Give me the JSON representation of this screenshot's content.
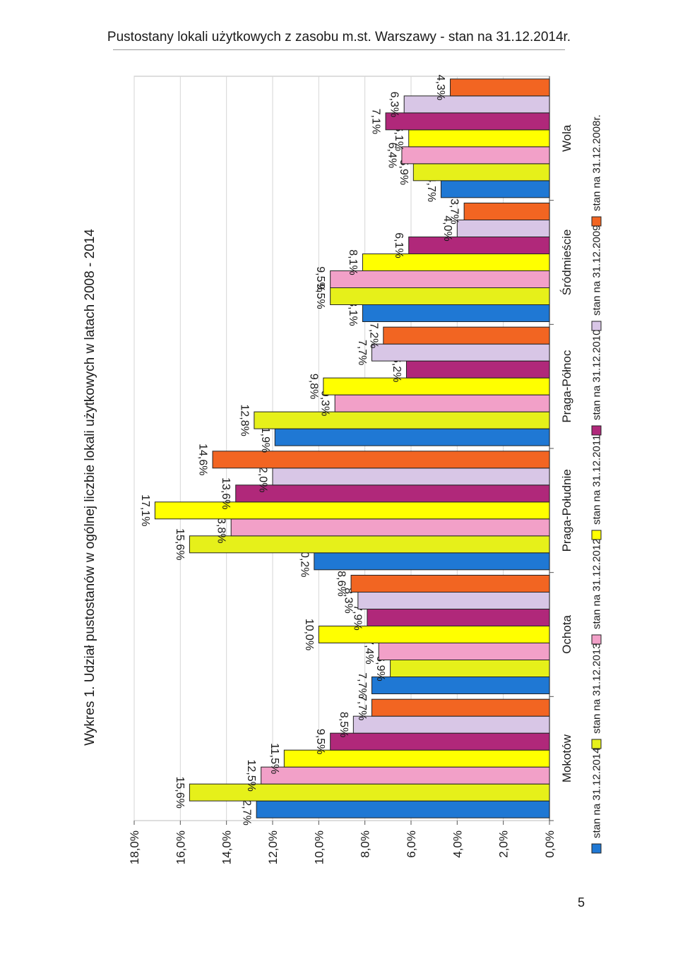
{
  "page": {
    "header": "Pustostany lokali użytkowych z zasobu m.st. Warszawy - stan na 31.12.2014r.",
    "page_number": "5"
  },
  "chart_data": {
    "type": "bar",
    "orientation": "rotated-90-counterclockwise",
    "title": "Wykres 1. Udział pustostanów w ogólnej liczbie lokali użytkowych w latach 2008 - 2014",
    "xlabel": "",
    "ylabel": "",
    "ylim": [
      0,
      18
    ],
    "yticks": [
      "0,0%",
      "2,0%",
      "4,0%",
      "6,0%",
      "8,0%",
      "10,0%",
      "12,0%",
      "14,0%",
      "16,0%",
      "18,0%"
    ],
    "grid": true,
    "legend_position": "bottom",
    "categories": [
      "Mokotów",
      "Ochota",
      "Praga-Południe",
      "Praga-Północ",
      "Śródmieście",
      "Wola"
    ],
    "series": [
      {
        "name": "stan na 31.12.2014r.",
        "color": "#1f78d4",
        "values": [
          12.7,
          7.7,
          10.2,
          11.9,
          8.1,
          4.7
        ],
        "labels": [
          "12,7%",
          "7,7%",
          "10,2%",
          "11,9%",
          "8,1%",
          "4,7%"
        ]
      },
      {
        "name": "stan na 31.12.2013r.",
        "color": "#e6f01a",
        "values": [
          15.6,
          6.9,
          15.6,
          12.8,
          9.5,
          5.9
        ],
        "labels": [
          "15,6%",
          "6,9%",
          "15,6%",
          "12,8%",
          "9,5%",
          "5,9%"
        ]
      },
      {
        "name": "stan na 31.12.2012r.",
        "color": "#f2a0c8",
        "values": [
          12.5,
          7.4,
          13.8,
          9.3,
          9.5,
          6.4
        ],
        "labels": [
          "12,5%",
          "7,4%",
          "13,8%",
          "9,3%",
          "9,5%",
          "6,4%"
        ]
      },
      {
        "name": "stan na 31.12.2011r.",
        "color": "#ffff00",
        "values": [
          11.5,
          10.0,
          17.1,
          9.8,
          8.1,
          6.1
        ],
        "labels": [
          "11,5%",
          "10,0%",
          "17,1%",
          "9,8%",
          "8,1%",
          "6,1%"
        ]
      },
      {
        "name": "stan na 31.12.2010r.",
        "color": "#b0287a",
        "values": [
          9.5,
          7.9,
          13.6,
          6.2,
          6.1,
          7.1
        ],
        "labels": [
          "9,5%",
          "7,9%",
          "13,6%",
          "6,2%",
          "6,1%",
          "7,1%"
        ]
      },
      {
        "name": "stan na 31.12.2009r.",
        "color": "#d8c6e6",
        "values": [
          8.5,
          8.3,
          12.0,
          7.7,
          4.0,
          6.3
        ],
        "labels": [
          "8,5%",
          "8,3%",
          "12,0%",
          "7,7%",
          "4,0%",
          "6,3%"
        ]
      },
      {
        "name": "stan na 31.12.2008r.",
        "color": "#f26522",
        "values": [
          7.7,
          8.6,
          14.6,
          7.2,
          3.7,
          4.3
        ],
        "labels": [
          "7,7%",
          "8,6%",
          "14,6%",
          "7,2%",
          "3,7%",
          "4,3%"
        ]
      }
    ]
  }
}
